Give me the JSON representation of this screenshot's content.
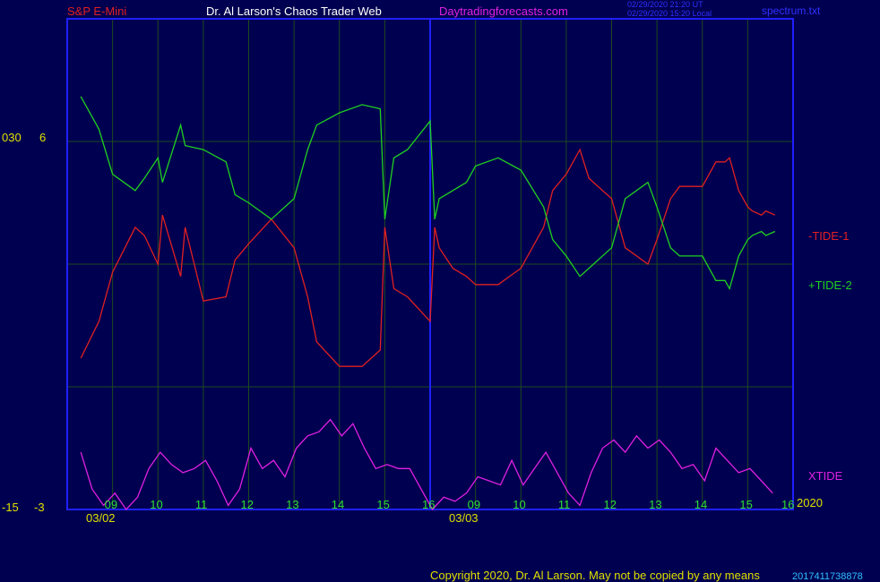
{
  "header": {
    "symbol": "S&P E-Mini",
    "site_title": "Dr. Al Larson's Chaos Trader Web",
    "site_url": "Daytradingforecasts.com",
    "time_ut": "02/29/2020 21:20 UT",
    "time_local": "02/29/2020 15:20 Local",
    "file": "spectrum.txt"
  },
  "footer": {
    "copyright": "Copyright 2020, Dr. Al Larson. May not be copied by any means",
    "year": "2020",
    "code": "2017411738878"
  },
  "colors": {
    "background": "#000050",
    "frame": "#2020ff",
    "grid": "#1e4a1e",
    "tide1": "#e02020",
    "tide2": "#20d020",
    "xtide": "#e020e0",
    "axis_text": "#e0e000",
    "time_text": "#30e030",
    "symbol_text": "#e02020",
    "title_text": "#ffffff",
    "url_text": "#e020e0",
    "meta_text": "#3030ff"
  },
  "chart_data": {
    "type": "line",
    "x_unit": "hour",
    "day_labels": [
      "03/02",
      "03/03"
    ],
    "hour_ticks": [
      {
        "day": "03/02",
        "hour": 9,
        "label": "09"
      },
      {
        "day": "03/02",
        "hour": 10,
        "label": "10"
      },
      {
        "day": "03/02",
        "hour": 11,
        "label": "11"
      },
      {
        "day": "03/02",
        "hour": 12,
        "label": "12"
      },
      {
        "day": "03/02",
        "hour": 13,
        "label": "13"
      },
      {
        "day": "03/02",
        "hour": 14,
        "label": "14"
      },
      {
        "day": "03/02",
        "hour": 15,
        "label": "15"
      },
      {
        "day": "03/02",
        "hour": 16,
        "label": "16"
      },
      {
        "day": "03/03",
        "hour": 9,
        "label": "09"
      },
      {
        "day": "03/03",
        "hour": 10,
        "label": "10"
      },
      {
        "day": "03/03",
        "hour": 11,
        "label": "11"
      },
      {
        "day": "03/03",
        "hour": 12,
        "label": "12"
      },
      {
        "day": "03/03",
        "hour": 13,
        "label": "13"
      },
      {
        "day": "03/03",
        "hour": 14,
        "label": "14"
      },
      {
        "day": "03/03",
        "hour": 15,
        "label": "15"
      },
      {
        "day": "03/03",
        "hour": 16,
        "label": "16"
      }
    ],
    "y_left_labels": [
      {
        "value": 6,
        "left": "030",
        "right": "6"
      },
      {
        "value": -3,
        "left": "-15",
        "right": "-3"
      }
    ],
    "ylim": [
      -3,
      9
    ],
    "grid": true,
    "series": [
      {
        "name": "-TIDE-1",
        "color_key": "tide1",
        "x": [
          8.3,
          8.7,
          9,
          9.5,
          9.7,
          10,
          10.1,
          10.5,
          10.6,
          11,
          11.5,
          11.7,
          12,
          12.5,
          13,
          13.3,
          13.5,
          14,
          14.5,
          14.9,
          15,
          15.2,
          15.5,
          16,
          16.1,
          16.2,
          16.5,
          16.8,
          17,
          17.5,
          18,
          18.5,
          18.7,
          19,
          19.3,
          19.5,
          20,
          20.3,
          20.8,
          21,
          21.3,
          21.5,
          21.7,
          22,
          22.3,
          22.5,
          22.6,
          22.8,
          23,
          23.1,
          23.3,
          23.4,
          23.6
        ],
        "y": [
          0.7,
          1.6,
          2.8,
          3.9,
          3.7,
          3.0,
          4.2,
          2.7,
          3.9,
          2.1,
          2.2,
          3.1,
          3.5,
          4.1,
          3.4,
          2.2,
          1.1,
          0.5,
          0.5,
          0.9,
          3.9,
          2.4,
          2.2,
          1.6,
          3.9,
          3.4,
          2.9,
          2.7,
          2.5,
          2.5,
          2.9,
          3.9,
          4.8,
          5.2,
          5.8,
          5.1,
          4.6,
          3.4,
          3.0,
          3.6,
          4.6,
          4.9,
          4.9,
          4.9,
          5.5,
          5.5,
          5.6,
          4.8,
          4.4,
          4.3,
          4.2,
          4.3,
          4.2
        ]
      },
      {
        "name": "+TIDE-2",
        "color_key": "tide2",
        "x": [
          8.3,
          8.7,
          9,
          9.5,
          9.7,
          10,
          10.1,
          10.5,
          10.6,
          11,
          11.5,
          11.7,
          12,
          12.5,
          13,
          13.3,
          13.5,
          14,
          14.5,
          14.9,
          15,
          15.2,
          15.5,
          16,
          16.1,
          16.2,
          16.5,
          16.8,
          17,
          17.5,
          18,
          18.5,
          18.7,
          19,
          19.3,
          19.5,
          20,
          20.3,
          20.8,
          21,
          21.3,
          21.5,
          21.7,
          22,
          22.3,
          22.5,
          22.6,
          22.8,
          23,
          23.1,
          23.3,
          23.4,
          23.6
        ],
        "y": [
          7.1,
          6.3,
          5.2,
          4.8,
          5.1,
          5.6,
          5.0,
          6.4,
          5.9,
          5.8,
          5.5,
          4.7,
          4.5,
          4.1,
          4.6,
          5.8,
          6.4,
          6.7,
          6.9,
          6.8,
          4.1,
          5.6,
          5.8,
          6.5,
          4.1,
          4.6,
          4.8,
          5.0,
          5.4,
          5.6,
          5.3,
          4.4,
          3.6,
          3.2,
          2.7,
          2.9,
          3.4,
          4.6,
          5.0,
          4.4,
          3.4,
          3.2,
          3.2,
          3.2,
          2.6,
          2.6,
          2.4,
          3.2,
          3.6,
          3.7,
          3.8,
          3.7,
          3.8
        ]
      },
      {
        "name": "XTIDE",
        "color_key": "xtide",
        "x": [
          8.3,
          8.55,
          8.8,
          9.05,
          9.3,
          9.55,
          9.8,
          10.05,
          10.3,
          10.55,
          10.8,
          11.05,
          11.3,
          11.55,
          11.8,
          12.05,
          12.3,
          12.55,
          12.8,
          13.05,
          13.3,
          13.55,
          13.8,
          14.05,
          14.3,
          14.55,
          14.8,
          15.05,
          15.3,
          15.55,
          15.8,
          16.05,
          16.3,
          16.55,
          16.8,
          17.05,
          17.3,
          17.55,
          17.8,
          18.05,
          18.3,
          18.55,
          18.8,
          19.05,
          19.3,
          19.55,
          19.8,
          20.05,
          20.3,
          20.55,
          20.8,
          21.05,
          21.3,
          21.55,
          21.8,
          22.05,
          22.3,
          22.55,
          22.8,
          23.05,
          23.3,
          23.55
        ],
        "y": [
          -1.6,
          -2.5,
          -2.9,
          -2.6,
          -3.0,
          -2.7,
          -2.0,
          -1.6,
          -1.9,
          -2.1,
          -2.0,
          -1.8,
          -2.3,
          -2.9,
          -2.5,
          -1.5,
          -2.0,
          -1.8,
          -2.2,
          -1.5,
          -1.2,
          -1.1,
          -0.8,
          -1.2,
          -0.9,
          -1.5,
          -2.0,
          -1.9,
          -2.0,
          -2.0,
          -2.5,
          -3.0,
          -2.7,
          -2.8,
          -2.6,
          -2.2,
          -2.3,
          -2.4,
          -1.8,
          -2.4,
          -2.0,
          -1.6,
          -2.1,
          -2.6,
          -2.9,
          -2.1,
          -1.5,
          -1.3,
          -1.6,
          -1.2,
          -1.5,
          -1.3,
          -1.6,
          -2.0,
          -1.9,
          -2.3,
          -1.5,
          -1.8,
          -2.1,
          -2.0,
          -2.3,
          -2.6
        ]
      }
    ]
  }
}
